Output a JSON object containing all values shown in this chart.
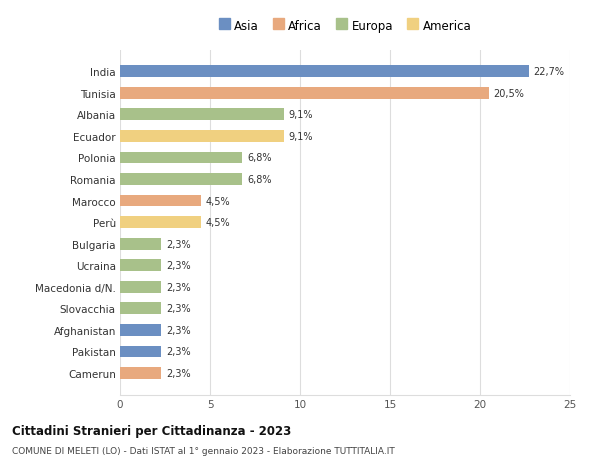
{
  "categories": [
    "Camerun",
    "Pakistan",
    "Afghanistan",
    "Slovacchia",
    "Macedonia d/N.",
    "Ucraina",
    "Bulgaria",
    "Perù",
    "Marocco",
    "Romania",
    "Polonia",
    "Ecuador",
    "Albania",
    "Tunisia",
    "India"
  ],
  "values": [
    2.3,
    2.3,
    2.3,
    2.3,
    2.3,
    2.3,
    2.3,
    4.5,
    4.5,
    6.8,
    6.8,
    9.1,
    9.1,
    20.5,
    22.7
  ],
  "colors": [
    "#e8a97e",
    "#6b8fc2",
    "#6b8fc2",
    "#a8c18a",
    "#a8c18a",
    "#a8c18a",
    "#a8c18a",
    "#f0d080",
    "#e8a97e",
    "#a8c18a",
    "#a8c18a",
    "#f0d080",
    "#a8c18a",
    "#e8a97e",
    "#6b8fc2"
  ],
  "labels": [
    "2,3%",
    "2,3%",
    "2,3%",
    "2,3%",
    "2,3%",
    "2,3%",
    "2,3%",
    "4,5%",
    "4,5%",
    "6,8%",
    "6,8%",
    "9,1%",
    "9,1%",
    "20,5%",
    "22,7%"
  ],
  "legend": [
    {
      "label": "Asia",
      "color": "#6b8fc2"
    },
    {
      "label": "Africa",
      "color": "#e8a97e"
    },
    {
      "label": "Europa",
      "color": "#a8c18a"
    },
    {
      "label": "America",
      "color": "#f0d080"
    }
  ],
  "title": "Cittadini Stranieri per Cittadinanza - 2023",
  "subtitle": "COMUNE DI MELETI (LO) - Dati ISTAT al 1° gennaio 2023 - Elaborazione TUTTITALIA.IT",
  "xlim": [
    0,
    25
  ],
  "xticks": [
    0,
    5,
    10,
    15,
    20,
    25
  ],
  "background_color": "#ffffff",
  "grid_color": "#dddddd"
}
